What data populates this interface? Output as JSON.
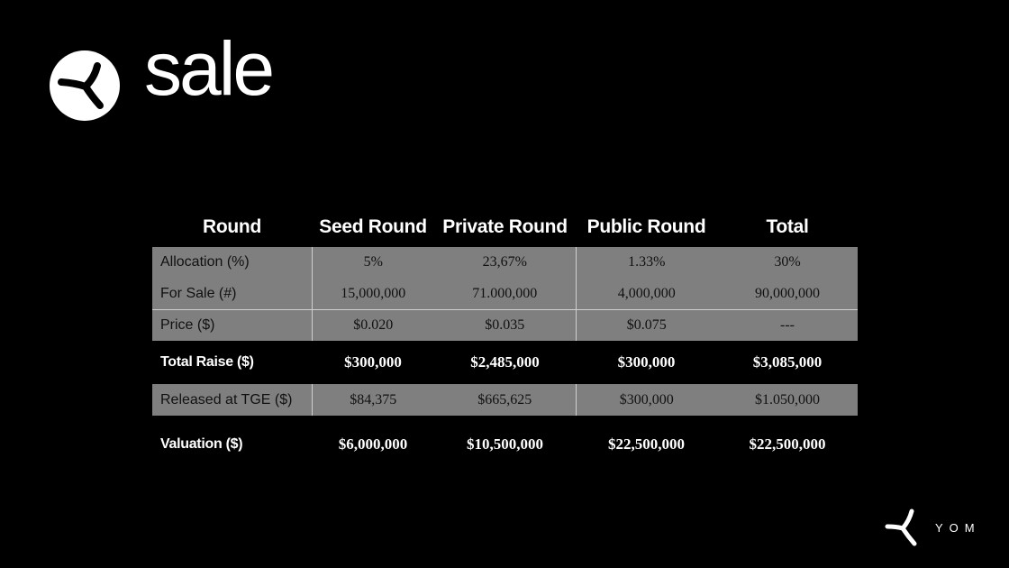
{
  "header": {
    "logo_icon": "brand-mark-circle-icon",
    "title": "sale"
  },
  "table": {
    "columns": [
      "Round",
      "Seed Round",
      "Private Round",
      "Public Round",
      "Total"
    ],
    "rows": [
      {
        "label": "Allocation (%)",
        "cells": [
          "5%",
          "23,67%",
          "1.33%",
          "30%"
        ]
      },
      {
        "label": "For Sale (#)",
        "cells": [
          "15,000,000",
          "71.000,000",
          "4,000,000",
          "90,000,000"
        ]
      },
      {
        "label": "Price ($)",
        "cells": [
          "$0.020",
          "$0.035",
          "$0.075",
          "---"
        ]
      },
      {
        "label": "Total Raise ($)",
        "cells": [
          "$300,000",
          "$2,485,000",
          "$300,000",
          "$3,085,000"
        ]
      },
      {
        "label": "Released at TGE ($)",
        "cells": [
          "$84,375",
          "$665,625",
          "$300,000",
          "$1.050,000"
        ]
      },
      {
        "label": "Valuation ($)",
        "cells": [
          "$6,000,000",
          "$10,500,000",
          "$22,500,000",
          "$22,500,000"
        ]
      }
    ]
  },
  "footer": {
    "brand_icon": "brand-mark-icon",
    "brand_name": "YOM"
  },
  "colors": {
    "background": "#000000",
    "gray_band": "#7f7f7f",
    "text": "#ffffff"
  }
}
